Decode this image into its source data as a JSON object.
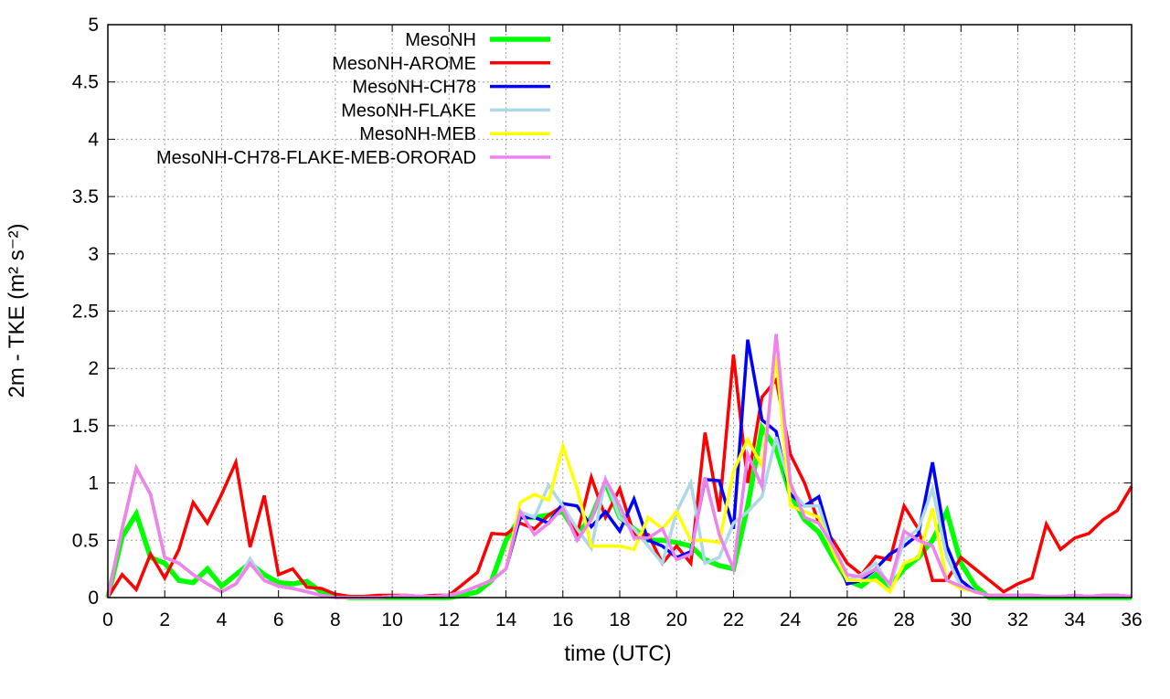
{
  "chart_data": {
    "type": "line",
    "title": "",
    "xlabel": "time (UTC)",
    "ylabel": "2m - TKE (m² s⁻²)",
    "xlim": [
      0,
      36
    ],
    "ylim": [
      0,
      5
    ],
    "xticks": [
      0,
      2,
      4,
      6,
      8,
      10,
      12,
      14,
      16,
      18,
      20,
      22,
      24,
      26,
      28,
      30,
      32,
      34,
      36
    ],
    "yticks": [
      "0",
      "0.5",
      "1",
      "1.5",
      "2",
      "2.5",
      "3",
      "3.5",
      "4",
      "4.5",
      "5"
    ],
    "grid": true,
    "legend_position": "top-left",
    "x": [
      0,
      0.5,
      1,
      1.5,
      2,
      2.5,
      3,
      3.5,
      4,
      4.5,
      5,
      5.5,
      6,
      6.5,
      7,
      7.5,
      8,
      8.5,
      9,
      9.5,
      10,
      10.5,
      11,
      11.5,
      12,
      12.5,
      13,
      13.5,
      14,
      14.5,
      15,
      15.5,
      16,
      16.5,
      17,
      17.5,
      18,
      18.5,
      19,
      19.5,
      20,
      20.5,
      21,
      21.5,
      22,
      22.5,
      23,
      23.5,
      24,
      24.5,
      25,
      25.5,
      26,
      26.5,
      27,
      27.5,
      28,
      28.5,
      29,
      29.5,
      30,
      30.5,
      31,
      31.5,
      32,
      32.5,
      33,
      33.5,
      34,
      34.5,
      35,
      35.5,
      36
    ],
    "series": [
      {
        "name": "MesoNH",
        "color": "#00ff00",
        "values": [
          0,
          0.53,
          0.73,
          0.35,
          0.3,
          0.15,
          0.13,
          0.25,
          0.1,
          0.2,
          0.3,
          0.2,
          0.13,
          0.12,
          0.14,
          0.05,
          0.02,
          0,
          0,
          0,
          0,
          0,
          0,
          0,
          0,
          0.02,
          0.05,
          0.15,
          0.5,
          0.7,
          0.7,
          0.72,
          0.75,
          0.55,
          0.7,
          1.0,
          0.7,
          0.6,
          0.5,
          0.5,
          0.48,
          0.45,
          0.33,
          0.28,
          0.25,
          0.8,
          1.48,
          1.3,
          0.9,
          0.68,
          0.57,
          0.35,
          0.15,
          0.1,
          0.2,
          0.1,
          0.25,
          0.35,
          0.5,
          0.75,
          0.3,
          0.1,
          0,
          0,
          0,
          0,
          0,
          0,
          0,
          0,
          0,
          0,
          0
        ]
      },
      {
        "name": "MesoNH-AROME",
        "color": "#ff0000",
        "values": [
          0,
          0.2,
          0.07,
          0.38,
          0.17,
          0.42,
          0.83,
          0.65,
          0.9,
          1.18,
          0.44,
          0.89,
          0.2,
          0.25,
          0.09,
          0.08,
          0.03,
          0.01,
          0.01,
          0.02,
          0.02,
          0.02,
          0.01,
          0.02,
          0.02,
          0.12,
          0.22,
          0.56,
          0.55,
          0.65,
          0.6,
          0.72,
          0.8,
          0.55,
          1.05,
          0.7,
          0.95,
          0.55,
          0.55,
          0.3,
          0.45,
          0.3,
          1.44,
          0.75,
          2.12,
          1.0,
          1.75,
          1.9,
          1.25,
          1.0,
          0.65,
          0.5,
          0.3,
          0.2,
          0.36,
          0.33,
          0.8,
          0.6,
          0.15,
          0.15,
          0.35,
          0.25,
          0.15,
          0.05,
          0.12,
          0.17,
          0.64,
          0.42,
          0.52,
          0.56,
          0.68,
          0.76,
          0.97
        ]
      },
      {
        "name": "MesoNH-CH78",
        "color": "#0000ff",
        "values": [
          0,
          0.6,
          1.13,
          0.9,
          0.35,
          0.3,
          0.2,
          0.12,
          0.05,
          0.12,
          0.3,
          0.15,
          0.1,
          0.08,
          0.05,
          0.02,
          0,
          0,
          0,
          0,
          0.01,
          0.02,
          0.01,
          0.01,
          0.02,
          0.05,
          0.1,
          0.15,
          0.25,
          0.7,
          0.7,
          0.65,
          0.82,
          0.8,
          0.62,
          0.75,
          0.58,
          0.86,
          0.5,
          0.45,
          0.35,
          0.4,
          1.03,
          1.02,
          0.6,
          2.25,
          1.55,
          1.45,
          0.9,
          0.8,
          0.88,
          0.45,
          0.12,
          0.15,
          0.25,
          0.38,
          0.45,
          0.55,
          1.18,
          0.45,
          0.15,
          0.05,
          0.02,
          0.02,
          0.02,
          0.02,
          0.01,
          0.01,
          0.02,
          0.01,
          0.02,
          0.02,
          0.01
        ]
      },
      {
        "name": "MesoNH-FLAKE",
        "color": "#add8e6",
        "values": [
          0,
          0.6,
          1.13,
          0.9,
          0.35,
          0.3,
          0.2,
          0.12,
          0.05,
          0.12,
          0.34,
          0.15,
          0.1,
          0.08,
          0.05,
          0.02,
          0,
          0,
          0,
          0,
          0.01,
          0.02,
          0.01,
          0.01,
          0.02,
          0.05,
          0.1,
          0.15,
          0.25,
          0.75,
          0.7,
          0.98,
          0.8,
          0.6,
          0.43,
          1.03,
          0.7,
          0.6,
          0.45,
          0.3,
          0.75,
          1.0,
          0.3,
          0.35,
          0.65,
          0.75,
          0.88,
          1.4,
          0.95,
          0.8,
          0.8,
          0.4,
          0.15,
          0.2,
          0.3,
          0.1,
          0.5,
          0.6,
          0.95,
          0.35,
          0.1,
          0.05,
          0.02,
          0.02,
          0.02,
          0.02,
          0.01,
          0.01,
          0.02,
          0.01,
          0.02,
          0.02,
          0.01
        ]
      },
      {
        "name": "MesoNH-MEB",
        "color": "#ffff00",
        "values": [
          0,
          0.6,
          1.13,
          0.9,
          0.35,
          0.3,
          0.2,
          0.12,
          0.05,
          0.12,
          0.3,
          0.15,
          0.1,
          0.08,
          0.05,
          0.02,
          0,
          0,
          0,
          0,
          0.01,
          0.02,
          0.01,
          0.01,
          0.02,
          0.05,
          0.1,
          0.15,
          0.25,
          0.83,
          0.9,
          0.85,
          1.32,
          0.95,
          0.45,
          0.45,
          0.45,
          0.42,
          0.7,
          0.6,
          0.75,
          0.5,
          0.5,
          0.48,
          1.1,
          1.38,
          1.15,
          2.1,
          0.8,
          0.75,
          0.7,
          0.4,
          0.15,
          0.15,
          0.15,
          0.05,
          0.3,
          0.35,
          0.78,
          0.15,
          0.08,
          0.05,
          0.02,
          0.02,
          0.02,
          0.02,
          0.01,
          0.01,
          0.02,
          0.01,
          0.02,
          0.02,
          0.01
        ]
      },
      {
        "name": "MesoNH-CH78-FLAKE-MEB-ORORAD",
        "color": "#ee82ee",
        "values": [
          0,
          0.6,
          1.13,
          0.9,
          0.35,
          0.3,
          0.2,
          0.12,
          0.05,
          0.12,
          0.3,
          0.15,
          0.1,
          0.08,
          0.05,
          0.02,
          0,
          0,
          0,
          0,
          0.01,
          0.02,
          0.01,
          0.01,
          0.02,
          0.05,
          0.1,
          0.15,
          0.25,
          0.75,
          0.55,
          0.65,
          0.78,
          0.5,
          0.68,
          1.03,
          0.8,
          0.52,
          0.52,
          0.6,
          0.33,
          0.38,
          1.05,
          0.55,
          0.25,
          1.25,
          0.97,
          2.3,
          1.0,
          0.7,
          0.65,
          0.45,
          0.2,
          0.18,
          0.25,
          0.12,
          0.58,
          0.5,
          0.45,
          0.15,
          0.1,
          0.05,
          0.02,
          0.02,
          0.02,
          0.02,
          0.01,
          0.01,
          0.02,
          0.01,
          0.02,
          0.02,
          0.01
        ]
      }
    ]
  }
}
